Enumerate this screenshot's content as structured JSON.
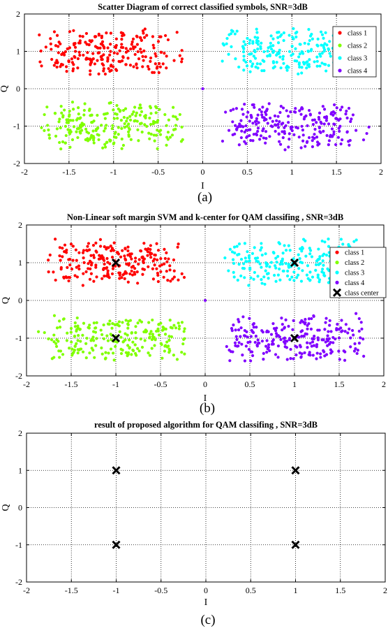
{
  "chart_data": [
    {
      "type": "scatter",
      "title": "Scatter Diagram of correct classified symbols, SNR=3dB",
      "xlabel": "I",
      "ylabel": "Q",
      "caption": "(a)",
      "xlim": [
        -2,
        2
      ],
      "ylim": [
        -2,
        2
      ],
      "xticks": [
        "-2",
        "-1.5",
        "-1",
        "-0.5",
        "0",
        "0.5",
        "1",
        "1.5",
        "2"
      ],
      "yticks": [
        "-2",
        "-1",
        "0",
        "1",
        "2"
      ],
      "grid": "dotted",
      "legend_position": "top-right",
      "series": [
        {
          "name": "class 1",
          "color": "#ff0000",
          "center": [
            -1,
            1
          ],
          "spread": [
            0.5,
            0.3
          ],
          "n": 230,
          "seed": 11
        },
        {
          "name": "class 2",
          "color": "#80ff00",
          "center": [
            -1,
            -1
          ],
          "spread": [
            0.55,
            0.3
          ],
          "n": 230,
          "seed": 12
        },
        {
          "name": "class 3",
          "color": "#00ffff",
          "center": [
            1,
            1
          ],
          "spread": [
            0.5,
            0.3
          ],
          "n": 220,
          "seed": 13
        },
        {
          "name": "class 4",
          "color": "#8000ff",
          "center": [
            1,
            -1
          ],
          "spread": [
            0.5,
            0.3
          ],
          "n": 230,
          "seed": 14
        }
      ],
      "extra_points": [
        {
          "x": 0,
          "y": 0,
          "color": "#8000ff"
        }
      ]
    },
    {
      "type": "scatter",
      "title": "Non-Linear soft margin SVM and k-center for QAM classifing , SNR=3dB",
      "xlabel": "I",
      "ylabel": "Q",
      "caption": "(b)",
      "xlim": [
        -2,
        2
      ],
      "ylim": [
        -2,
        2
      ],
      "xticks": [
        "-2",
        "-1.5",
        "-1",
        "-0.5",
        "0",
        "0.5",
        "1",
        "1.5",
        "2"
      ],
      "yticks": [
        "-2",
        "-1",
        "0",
        "1",
        "2"
      ],
      "grid": "dotted",
      "legend_position": "top-right",
      "series": [
        {
          "name": "class 1",
          "color": "#ff0000",
          "center": [
            -1,
            1
          ],
          "spread": [
            0.5,
            0.3
          ],
          "n": 230,
          "seed": 21
        },
        {
          "name": "class 2",
          "color": "#80ff00",
          "center": [
            -1,
            -1
          ],
          "spread": [
            0.55,
            0.3
          ],
          "n": 230,
          "seed": 22
        },
        {
          "name": "class 3",
          "color": "#00ffff",
          "center": [
            1,
            1
          ],
          "spread": [
            0.5,
            0.3
          ],
          "n": 220,
          "seed": 23
        },
        {
          "name": "class 4",
          "color": "#8000ff",
          "center": [
            1,
            -1
          ],
          "spread": [
            0.5,
            0.3
          ],
          "n": 230,
          "seed": 24
        },
        {
          "name": "class center",
          "color": "#000000",
          "marker": "x",
          "points": [
            [
              -1,
              1
            ],
            [
              1,
              1
            ],
            [
              -1,
              -1
            ],
            [
              1,
              -1
            ]
          ]
        }
      ],
      "extra_points": [
        {
          "x": 0,
          "y": 0,
          "color": "#8000ff"
        }
      ]
    },
    {
      "type": "scatter",
      "title": "result of proposed algorithm for QAM classifing , SNR=3dB",
      "xlabel": "I",
      "ylabel": "Q",
      "caption": "(c)",
      "xlim": [
        -2,
        2
      ],
      "ylim": [
        -2,
        2
      ],
      "xticks": [
        "-2",
        "-1.5",
        "-1",
        "-0.5",
        "0",
        "0.5",
        "1",
        "1.5",
        "2"
      ],
      "yticks": [
        "-2",
        "-1",
        "0",
        "1",
        "2"
      ],
      "grid": "dotted",
      "series": [
        {
          "name": "",
          "color": "#000000",
          "marker": "x",
          "points": [
            [
              -1,
              1
            ],
            [
              1,
              1
            ],
            [
              -1,
              -1
            ],
            [
              1,
              -1
            ]
          ]
        }
      ]
    }
  ]
}
